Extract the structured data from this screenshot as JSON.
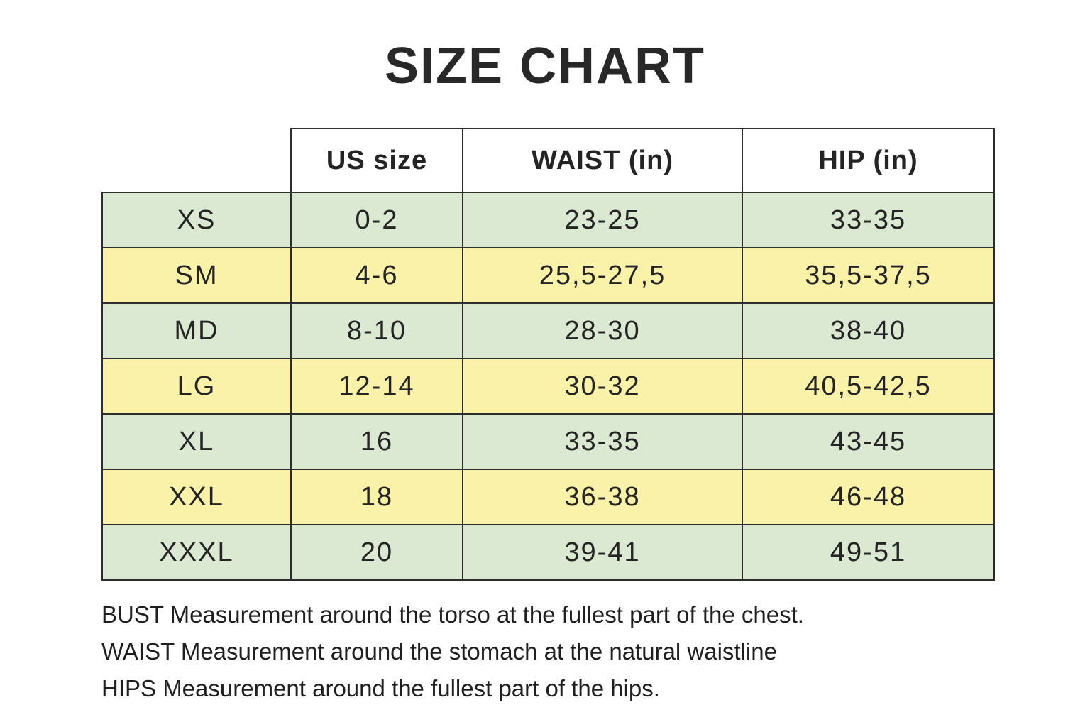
{
  "page": {
    "title": "SIZE CHART",
    "background_color": "#ffffff"
  },
  "colors": {
    "row_green": "#dbe9d3",
    "row_yellow": "#faf2a8",
    "border": "#2d2d2d",
    "text": "#222222",
    "title_text": "#282828"
  },
  "chart_data": {
    "type": "table",
    "title": "SIZE CHART",
    "columns": [
      "",
      "US size",
      "WAIST (in)",
      "HIP (in)"
    ],
    "rows": [
      {
        "size": "XS",
        "us_size": "0-2",
        "waist_in": "23-25",
        "hip_in": "33-35",
        "row_color": "green"
      },
      {
        "size": "SM",
        "us_size": "4-6",
        "waist_in": "25,5-27,5",
        "hip_in": "35,5-37,5",
        "row_color": "yellow"
      },
      {
        "size": "MD",
        "us_size": "8-10",
        "waist_in": "28-30",
        "hip_in": "38-40",
        "row_color": "green"
      },
      {
        "size": "LG",
        "us_size": "12-14",
        "waist_in": "30-32",
        "hip_in": "40,5-42,5",
        "row_color": "yellow"
      },
      {
        "size": "XL",
        "us_size": "16",
        "waist_in": "33-35",
        "hip_in": "43-45",
        "row_color": "green"
      },
      {
        "size": "XXL",
        "us_size": "18",
        "waist_in": "36-38",
        "hip_in": "46-48",
        "row_color": "yellow"
      },
      {
        "size": "XXXL",
        "us_size": "20",
        "waist_in": "39-41",
        "hip_in": "49-51",
        "row_color": "green"
      }
    ]
  },
  "footnotes": [
    "BUST Measurement around the torso at the fullest part of the chest.",
    "WAIST Measurement around the stomach at the natural waistline",
    "HIPS Measurement around the fullest part of the hips."
  ]
}
